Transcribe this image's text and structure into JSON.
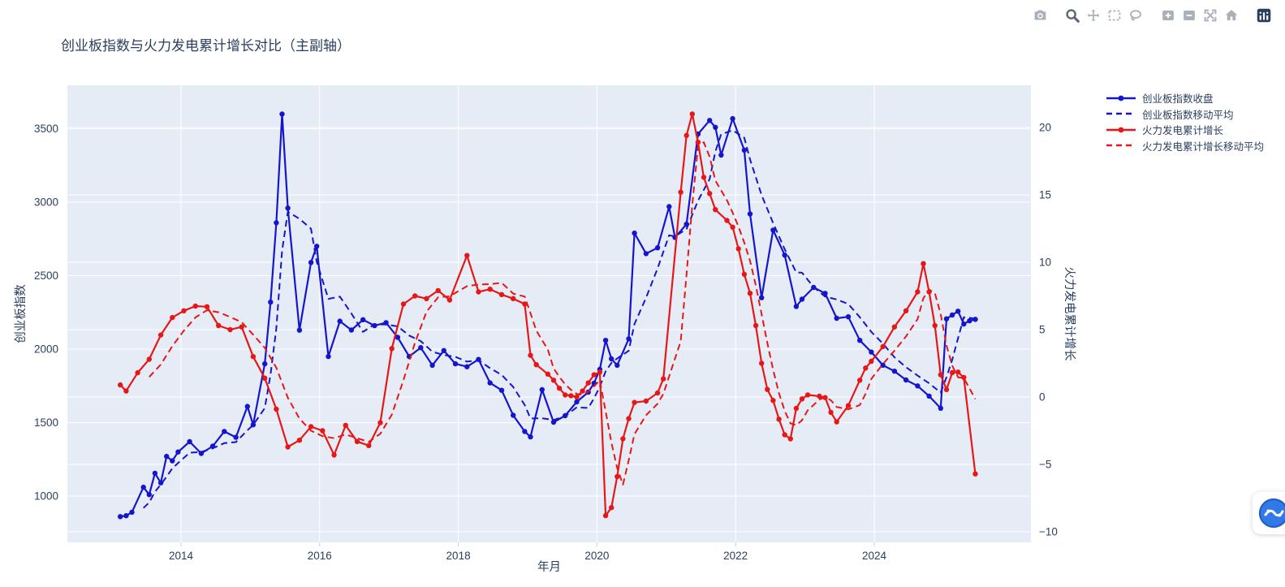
{
  "title": {
    "text": "创业板指数与火力发电累计增长对比（主副轴）"
  },
  "modebar": {
    "color": "#a9b0ba",
    "active_color": "#5c6773",
    "logo_color": "#2a3f5f",
    "icons": [
      {
        "name": "camera-icon",
        "group": 0,
        "active": false
      },
      {
        "name": "zoom-icon",
        "group": 1,
        "active": true
      },
      {
        "name": "pan-icon",
        "group": 1,
        "active": false
      },
      {
        "name": "box-select-icon",
        "group": 1,
        "active": false
      },
      {
        "name": "lasso-select-icon",
        "group": 1,
        "active": false
      },
      {
        "name": "zoom-in-icon",
        "group": 2,
        "active": false
      },
      {
        "name": "zoom-out-icon",
        "group": 2,
        "active": false
      },
      {
        "name": "autoscale-icon",
        "group": 2,
        "active": false
      },
      {
        "name": "reset-axes-icon",
        "group": 2,
        "active": false
      },
      {
        "name": "plotly-logo-icon",
        "group": 3,
        "active": false
      }
    ]
  },
  "assistant_button": {
    "name": "assistant-widget"
  },
  "chart_data": {
    "type": "line",
    "title": "创业板指数与火力发电累计增长对比（主副轴）",
    "plot_bg": "#e5ecf6",
    "grid_color": "#ffffff",
    "font_color": "#2a3f5f",
    "xlabel": "年月",
    "x_ticks": [
      2014,
      2016,
      2018,
      2020,
      2022,
      2024
    ],
    "x_domain": [
      2012.361,
      2026.26
    ],
    "y_left": {
      "title": "创业板指数",
      "ticks": [
        1000,
        1500,
        2000,
        2500,
        3000,
        3500
      ],
      "range": [
        685,
        3796
      ]
    },
    "y_right": {
      "title": "火力发电累计增长",
      "ticks": [
        -10,
        -5,
        0,
        5,
        10,
        15,
        20
      ],
      "range": [
        -10.78,
        23.13
      ]
    },
    "legend_position": "right-top",
    "ma_window": 4,
    "series": [
      {
        "name": "创业板指数收盘",
        "axis": "left",
        "color": "#1515cd",
        "dash": "solid",
        "markers": true,
        "data": [
          [
            "2013-02",
            860
          ],
          [
            "2013-03",
            866
          ],
          [
            "2013-04",
            890
          ],
          [
            "2013-06",
            1060
          ],
          [
            "2013-07",
            1010
          ],
          [
            "2013-08",
            1155
          ],
          [
            "2013-09",
            1090
          ],
          [
            "2013-10",
            1270
          ],
          [
            "2013-11",
            1240
          ],
          [
            "2013-12",
            1300
          ],
          [
            "2014-02",
            1370
          ],
          [
            "2014-04",
            1290
          ],
          [
            "2014-06",
            1340
          ],
          [
            "2014-08",
            1440
          ],
          [
            "2014-10",
            1400
          ],
          [
            "2014-12",
            1610
          ],
          [
            "2015-01",
            1485
          ],
          [
            "2015-03",
            1900
          ],
          [
            "2015-04",
            2320
          ],
          [
            "2015-05",
            2860
          ],
          [
            "2015-06",
            3600
          ],
          [
            "2015-07",
            2960
          ],
          [
            "2015-09",
            2129
          ],
          [
            "2015-11",
            2590
          ],
          [
            "2015-12",
            2700
          ],
          [
            "2016-02",
            1950
          ],
          [
            "2016-04",
            2190
          ],
          [
            "2016-06",
            2130
          ],
          [
            "2016-08",
            2200
          ],
          [
            "2016-10",
            2160
          ],
          [
            "2016-12",
            2180
          ],
          [
            "2017-02",
            2080
          ],
          [
            "2017-04",
            1950
          ],
          [
            "2017-06",
            2010
          ],
          [
            "2017-08",
            1890
          ],
          [
            "2017-10",
            1990
          ],
          [
            "2017-12",
            1900
          ],
          [
            "2018-02",
            1880
          ],
          [
            "2018-04",
            1930
          ],
          [
            "2018-06",
            1770
          ],
          [
            "2018-08",
            1720
          ],
          [
            "2018-10",
            1550
          ],
          [
            "2018-12",
            1440
          ],
          [
            "2019-01",
            1403
          ],
          [
            "2019-03",
            1724
          ],
          [
            "2019-05",
            1503
          ],
          [
            "2019-07",
            1547
          ],
          [
            "2019-09",
            1641
          ],
          [
            "2019-11",
            1707
          ],
          [
            "2019-12",
            1768
          ],
          [
            "2020-01",
            1862
          ],
          [
            "2020-02",
            2060
          ],
          [
            "2020-03",
            1934
          ],
          [
            "2020-04",
            1890
          ],
          [
            "2020-06",
            2070
          ],
          [
            "2020-07",
            2790
          ],
          [
            "2020-09",
            2650
          ],
          [
            "2020-11",
            2690
          ],
          [
            "2021-01",
            2970
          ],
          [
            "2021-02",
            2760
          ],
          [
            "2021-04",
            2850
          ],
          [
            "2021-06",
            3464
          ],
          [
            "2021-08",
            3557
          ],
          [
            "2021-09",
            3510
          ],
          [
            "2021-10",
            3321
          ],
          [
            "2021-12",
            3569
          ],
          [
            "2022-02",
            3354
          ],
          [
            "2022-03",
            2920
          ],
          [
            "2022-05",
            2350
          ],
          [
            "2022-07",
            2810
          ],
          [
            "2022-09",
            2640
          ],
          [
            "2022-11",
            2290
          ],
          [
            "2022-12",
            2340
          ],
          [
            "2023-02",
            2420
          ],
          [
            "2023-04",
            2380
          ],
          [
            "2023-06",
            2210
          ],
          [
            "2023-08",
            2220
          ],
          [
            "2023-10",
            2060
          ],
          [
            "2023-12",
            1980
          ],
          [
            "2024-02",
            1890
          ],
          [
            "2024-04",
            1850
          ],
          [
            "2024-06",
            1790
          ],
          [
            "2024-08",
            1750
          ],
          [
            "2024-10",
            1680
          ],
          [
            "2024-12",
            1598
          ],
          [
            "2025-01",
            2206
          ],
          [
            "2025-02",
            2232
          ],
          [
            "2025-03",
            2258
          ],
          [
            "2025-04",
            2171
          ],
          [
            "2025-05",
            2193
          ],
          [
            "2025-06",
            2203
          ]
        ]
      },
      {
        "name": "创业板指数移动平均",
        "axis": "left",
        "color": "#1515cd",
        "dash": "dashed",
        "markers": false,
        "derived_from": "创业板指数收盘",
        "window": 4
      },
      {
        "name": "火力发电累计增长",
        "axis": "right",
        "color": "#e81717",
        "dash": "solid",
        "markers": true,
        "data": [
          [
            "2013-02",
            0.9
          ],
          [
            "2013-03",
            0.45
          ],
          [
            "2013-05",
            1.8
          ],
          [
            "2013-07",
            2.8
          ],
          [
            "2013-09",
            4.6
          ],
          [
            "2013-11",
            5.9
          ],
          [
            "2014-01",
            6.4
          ],
          [
            "2014-03",
            6.75
          ],
          [
            "2014-05",
            6.7
          ],
          [
            "2014-07",
            5.3
          ],
          [
            "2014-09",
            5.0
          ],
          [
            "2014-11",
            5.2
          ],
          [
            "2015-01",
            3.0
          ],
          [
            "2015-03",
            1.4
          ],
          [
            "2015-05",
            -0.9
          ],
          [
            "2015-07",
            -3.7
          ],
          [
            "2015-09",
            -3.2
          ],
          [
            "2015-11",
            -2.2
          ],
          [
            "2016-01",
            -2.5
          ],
          [
            "2016-03",
            -4.3
          ],
          [
            "2016-05",
            -2.1
          ],
          [
            "2016-07",
            -3.3
          ],
          [
            "2016-09",
            -3.6
          ],
          [
            "2016-11",
            -1.9
          ],
          [
            "2017-01",
            3.6
          ],
          [
            "2017-03",
            6.9
          ],
          [
            "2017-05",
            7.5
          ],
          [
            "2017-07",
            7.3
          ],
          [
            "2017-09",
            7.9
          ],
          [
            "2017-11",
            7.2
          ],
          [
            "2018-02",
            10.5
          ],
          [
            "2018-04",
            7.8
          ],
          [
            "2018-06",
            8.0
          ],
          [
            "2018-08",
            7.6
          ],
          [
            "2018-10",
            7.3
          ],
          [
            "2018-12",
            6.9
          ],
          [
            "2019-01",
            3.1
          ],
          [
            "2019-02",
            2.4
          ],
          [
            "2019-04",
            1.7
          ],
          [
            "2019-05",
            1.25
          ],
          [
            "2019-06",
            0.65
          ],
          [
            "2019-07",
            0.16
          ],
          [
            "2019-08",
            0.1
          ],
          [
            "2019-09",
            0.0
          ],
          [
            "2019-10",
            0.45
          ],
          [
            "2019-11",
            1.05
          ],
          [
            "2019-12",
            1.65
          ],
          [
            "2020-01",
            1.85
          ],
          [
            "2020-02",
            -8.8
          ],
          [
            "2020-03",
            -8.2
          ],
          [
            "2020-04",
            -5.9
          ],
          [
            "2020-05",
            -3.1
          ],
          [
            "2020-06",
            -1.6
          ],
          [
            "2020-07",
            -0.4
          ],
          [
            "2020-09",
            -0.3
          ],
          [
            "2020-11",
            0.3
          ],
          [
            "2020-12",
            1.35
          ],
          [
            "2021-03",
            15.2
          ],
          [
            "2021-04",
            19.4
          ],
          [
            "2021-05",
            21.0
          ],
          [
            "2021-06",
            18.9
          ],
          [
            "2021-07",
            16.3
          ],
          [
            "2021-08",
            15.1
          ],
          [
            "2021-09",
            13.9
          ],
          [
            "2021-11",
            13.1
          ],
          [
            "2021-12",
            12.6
          ],
          [
            "2022-01",
            11.0
          ],
          [
            "2022-02",
            9.1
          ],
          [
            "2022-03",
            7.7
          ],
          [
            "2022-04",
            5.3
          ],
          [
            "2022-05",
            2.5
          ],
          [
            "2022-06",
            0.56
          ],
          [
            "2022-07",
            -0.25
          ],
          [
            "2022-08",
            -1.64
          ],
          [
            "2022-09",
            -2.8
          ],
          [
            "2022-10",
            -3.1
          ],
          [
            "2022-11",
            -0.84
          ],
          [
            "2022-12",
            -0.14
          ],
          [
            "2023-01",
            0.16
          ],
          [
            "2023-03",
            0.06
          ],
          [
            "2023-04",
            -0.04
          ],
          [
            "2023-05",
            -1.14
          ],
          [
            "2023-06",
            -1.84
          ],
          [
            "2023-08",
            -0.64
          ],
          [
            "2023-10",
            1.25
          ],
          [
            "2023-11",
            2.15
          ],
          [
            "2023-12",
            2.65
          ],
          [
            "2024-02",
            3.74
          ],
          [
            "2024-04",
            5.2
          ],
          [
            "2024-06",
            6.4
          ],
          [
            "2024-08",
            7.8
          ],
          [
            "2024-09",
            9.9
          ],
          [
            "2024-10",
            7.8
          ],
          [
            "2024-11",
            5.3
          ],
          [
            "2024-12",
            1.65
          ],
          [
            "2025-01",
            0.55
          ],
          [
            "2025-02",
            1.81
          ],
          [
            "2025-03",
            1.85
          ],
          [
            "2025-04",
            1.45
          ],
          [
            "2025-06",
            -5.7
          ]
        ]
      },
      {
        "name": "火力发电累计增长移动平均",
        "axis": "right",
        "color": "#e81717",
        "dash": "dashed",
        "markers": false,
        "derived_from": "火力发电累计增长",
        "window": 4
      }
    ]
  }
}
